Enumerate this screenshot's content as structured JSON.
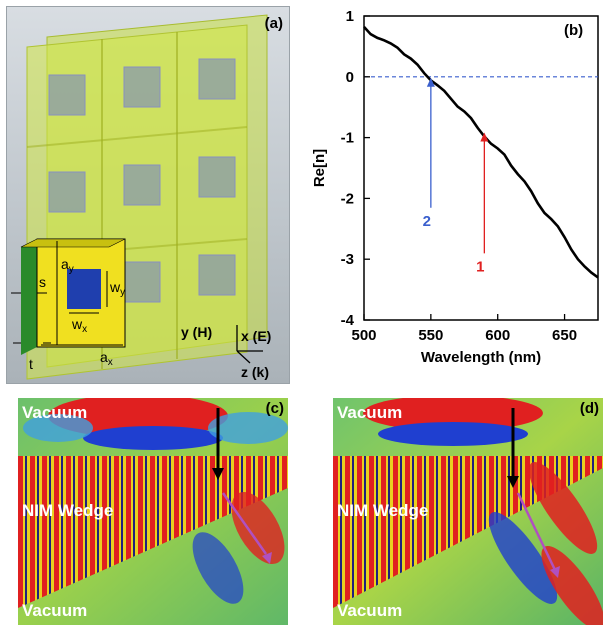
{
  "panels": {
    "a": {
      "label": "(a)",
      "unit_cell_labels": {
        "ay": "a",
        "ay_sub": "y",
        "wy": "w",
        "wy_sub": "y",
        "wx": "w",
        "wx_sub": "x",
        "ax": "a",
        "ax_sub": "x",
        "s": "s",
        "t": "t"
      },
      "axes": {
        "y": "y (H)",
        "x": "x (E)",
        "z": "z (k)"
      }
    },
    "b": {
      "label": "(b)"
    },
    "c": {
      "label": "(c)",
      "top_region": "Vacuum",
      "wedge": "NIM Wedge",
      "bottom_region": "Vacuum"
    },
    "d": {
      "label": "(d)",
      "top_region": "Vacuum",
      "wedge": "NIM Wedge",
      "bottom_region": "Vacuum"
    }
  },
  "chart_data": {
    "type": "line",
    "xlabel": "Wavelength (nm)",
    "ylabel": "Re[n]",
    "xlim": [
      500,
      675
    ],
    "ylim": [
      -4,
      1
    ],
    "xticks": [
      500,
      550,
      600,
      650
    ],
    "yticks": [
      1,
      0,
      -1,
      -2,
      -3,
      -4
    ],
    "series": [
      {
        "color": "#000000",
        "x": [
          500,
          505,
          510,
          515,
          520,
          525,
          530,
          535,
          540,
          545,
          550,
          555,
          560,
          565,
          570,
          575,
          580,
          585,
          590,
          595,
          600,
          605,
          610,
          615,
          620,
          625,
          630,
          635,
          640,
          645,
          650,
          655,
          660,
          665,
          670,
          675
        ],
        "y": [
          0.82,
          0.7,
          0.64,
          0.6,
          0.55,
          0.48,
          0.37,
          0.3,
          0.2,
          0.06,
          -0.06,
          -0.14,
          -0.23,
          -0.36,
          -0.49,
          -0.57,
          -0.68,
          -0.84,
          -0.98,
          -1.1,
          -1.18,
          -1.28,
          -1.46,
          -1.6,
          -1.72,
          -1.88,
          -2.08,
          -2.24,
          -2.34,
          -2.46,
          -2.64,
          -2.84,
          -3.0,
          -3.12,
          -3.22,
          -3.3
        ]
      }
    ],
    "reference_line": {
      "y": 0,
      "color": "#3a5fcd",
      "style": "dashed"
    },
    "annotations": [
      {
        "text": "2",
        "x": 550,
        "y_text": -2.45,
        "y_arrow_to": 0.0,
        "color": "#3a5fcd"
      },
      {
        "text": "1",
        "x": 590,
        "y_text": -3.2,
        "y_arrow_to": -0.9,
        "color": "#e02020"
      }
    ]
  }
}
